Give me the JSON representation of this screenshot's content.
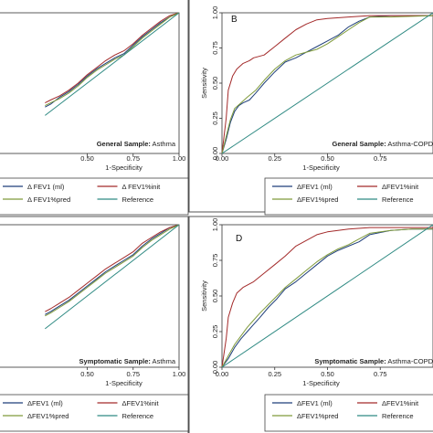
{
  "colors": {
    "fev1_ml": "#1f3f7a",
    "fev1_init": "#a32a2a",
    "fev1_pred": "#7f9a3a",
    "reference": "#2f8a83",
    "frame": "#555555"
  },
  "chart_data": [
    {
      "id": "A",
      "type": "line",
      "panel_label": "",
      "annotation_bold": "General Sample:",
      "annotation_rest": " Asthma",
      "xlabel": "1-Specificity",
      "ylabel": "",
      "xlim": [
        0,
        1
      ],
      "ylim": [
        0,
        1
      ],
      "x_ticks": [
        "0.50",
        "0.75",
        "1.00"
      ],
      "x_tick_values": [
        0.5,
        0.75,
        1.0
      ],
      "y_ticks": [],
      "y_tick_values": [],
      "legend": {
        "items": [
          "Δ FEV1 (ml)",
          "Δ FEV1%init",
          "Δ FEV1%pred",
          "Reference"
        ]
      },
      "series": [
        {
          "key": "fev1_ml",
          "points": [
            [
              0.27,
              0.33
            ],
            [
              0.3,
              0.35
            ],
            [
              0.35,
              0.4
            ],
            [
              0.4,
              0.44
            ],
            [
              0.45,
              0.49
            ],
            [
              0.5,
              0.55
            ],
            [
              0.55,
              0.6
            ],
            [
              0.6,
              0.64
            ],
            [
              0.65,
              0.68
            ],
            [
              0.7,
              0.71
            ],
            [
              0.75,
              0.77
            ],
            [
              0.8,
              0.83
            ],
            [
              0.85,
              0.88
            ],
            [
              0.9,
              0.93
            ],
            [
              0.95,
              0.97
            ],
            [
              1,
              1
            ]
          ]
        },
        {
          "key": "fev1_init",
          "points": [
            [
              0.27,
              0.36
            ],
            [
              0.3,
              0.38
            ],
            [
              0.35,
              0.41
            ],
            [
              0.4,
              0.45
            ],
            [
              0.45,
              0.5
            ],
            [
              0.5,
              0.56
            ],
            [
              0.55,
              0.61
            ],
            [
              0.6,
              0.66
            ],
            [
              0.65,
              0.7
            ],
            [
              0.7,
              0.73
            ],
            [
              0.75,
              0.78
            ],
            [
              0.8,
              0.84
            ],
            [
              0.85,
              0.89
            ],
            [
              0.9,
              0.94
            ],
            [
              0.95,
              0.98
            ],
            [
              1,
              1
            ]
          ]
        },
        {
          "key": "fev1_pred",
          "points": [
            [
              0.27,
              0.34
            ],
            [
              0.3,
              0.36
            ],
            [
              0.35,
              0.39
            ],
            [
              0.4,
              0.43
            ],
            [
              0.45,
              0.48
            ],
            [
              0.5,
              0.54
            ],
            [
              0.55,
              0.59
            ],
            [
              0.6,
              0.63
            ],
            [
              0.65,
              0.67
            ],
            [
              0.7,
              0.7
            ],
            [
              0.75,
              0.76
            ],
            [
              0.8,
              0.82
            ],
            [
              0.85,
              0.87
            ],
            [
              0.9,
              0.92
            ],
            [
              0.95,
              0.97
            ],
            [
              1,
              1
            ]
          ]
        },
        {
          "key": "reference",
          "points": [
            [
              0.27,
              0.27
            ],
            [
              1,
              1
            ]
          ]
        }
      ]
    },
    {
      "id": "B",
      "type": "line",
      "panel_label": "B",
      "annotation_bold": "General Sample:",
      "annotation_rest": " Asthma-COPD",
      "xlabel": "1-Specificity",
      "ylabel": "Sensitivity",
      "xlim": [
        0,
        1
      ],
      "ylim": [
        0,
        1
      ],
      "x_ticks": [
        "0.00",
        "0.25",
        "0.50",
        "0.75"
      ],
      "x_tick_values": [
        0,
        0.25,
        0.5,
        0.75
      ],
      "y_ticks": [
        "0.00",
        "0.25",
        "0.50",
        "0.75",
        "1.00"
      ],
      "y_tick_values": [
        0,
        0.25,
        0.5,
        0.75,
        1.0
      ],
      "legend": {
        "items": [
          "ΔFEV1 (ml)",
          "ΔFEV1%init",
          "ΔFEV1%pred",
          "Reference"
        ]
      },
      "series": [
        {
          "key": "fev1_ml",
          "points": [
            [
              0,
              0
            ],
            [
              0.02,
              0.1
            ],
            [
              0.04,
              0.22
            ],
            [
              0.06,
              0.3
            ],
            [
              0.08,
              0.34
            ],
            [
              0.1,
              0.36
            ],
            [
              0.13,
              0.38
            ],
            [
              0.16,
              0.43
            ],
            [
              0.2,
              0.5
            ],
            [
              0.25,
              0.58
            ],
            [
              0.3,
              0.65
            ],
            [
              0.35,
              0.68
            ],
            [
              0.4,
              0.72
            ],
            [
              0.45,
              0.76
            ],
            [
              0.5,
              0.8
            ],
            [
              0.55,
              0.84
            ],
            [
              0.6,
              0.9
            ],
            [
              0.65,
              0.94
            ],
            [
              0.7,
              0.97
            ],
            [
              0.8,
              0.98
            ],
            [
              0.9,
              0.98
            ],
            [
              1,
              0.98
            ]
          ]
        },
        {
          "key": "fev1_init",
          "points": [
            [
              0,
              0
            ],
            [
              0.02,
              0.25
            ],
            [
              0.03,
              0.45
            ],
            [
              0.05,
              0.55
            ],
            [
              0.07,
              0.6
            ],
            [
              0.1,
              0.64
            ],
            [
              0.13,
              0.66
            ],
            [
              0.15,
              0.68
            ],
            [
              0.2,
              0.7
            ],
            [
              0.25,
              0.76
            ],
            [
              0.3,
              0.82
            ],
            [
              0.35,
              0.88
            ],
            [
              0.4,
              0.92
            ],
            [
              0.45,
              0.95
            ],
            [
              0.5,
              0.96
            ],
            [
              0.6,
              0.97
            ],
            [
              0.7,
              0.98
            ],
            [
              0.8,
              0.98
            ],
            [
              1,
              0.98
            ]
          ]
        },
        {
          "key": "fev1_pred",
          "points": [
            [
              0,
              0
            ],
            [
              0.02,
              0.12
            ],
            [
              0.04,
              0.24
            ],
            [
              0.06,
              0.32
            ],
            [
              0.09,
              0.36
            ],
            [
              0.12,
              0.4
            ],
            [
              0.16,
              0.45
            ],
            [
              0.2,
              0.52
            ],
            [
              0.25,
              0.6
            ],
            [
              0.3,
              0.66
            ],
            [
              0.35,
              0.7
            ],
            [
              0.4,
              0.72
            ],
            [
              0.45,
              0.74
            ],
            [
              0.5,
              0.78
            ],
            [
              0.55,
              0.83
            ],
            [
              0.6,
              0.88
            ],
            [
              0.65,
              0.93
            ],
            [
              0.7,
              0.97
            ],
            [
              0.8,
              0.97
            ],
            [
              1,
              0.98
            ]
          ]
        },
        {
          "key": "reference",
          "points": [
            [
              0,
              0
            ],
            [
              1,
              1
            ]
          ]
        }
      ]
    },
    {
      "id": "C",
      "type": "line",
      "panel_label": "",
      "annotation_bold": "Symptomatic Sample:",
      "annotation_rest": " Asthma",
      "xlabel": "1-Specificity",
      "ylabel": "",
      "xlim": [
        0,
        1
      ],
      "ylim": [
        0,
        1
      ],
      "x_ticks": [
        "0.50",
        "0.75",
        "1.00"
      ],
      "x_tick_values": [
        0.5,
        0.75,
        1.0
      ],
      "y_ticks": [],
      "y_tick_values": [],
      "legend": {
        "items": [
          "ΔFEV1 (ml)",
          "ΔFEV1%init",
          "ΔFEV1%pred",
          "Reference"
        ]
      },
      "series": [
        {
          "key": "fev1_ml",
          "points": [
            [
              0.27,
              0.37
            ],
            [
              0.3,
              0.39
            ],
            [
              0.35,
              0.43
            ],
            [
              0.4,
              0.47
            ],
            [
              0.45,
              0.52
            ],
            [
              0.5,
              0.57
            ],
            [
              0.55,
              0.62
            ],
            [
              0.6,
              0.67
            ],
            [
              0.65,
              0.71
            ],
            [
              0.7,
              0.75
            ],
            [
              0.75,
              0.79
            ],
            [
              0.8,
              0.85
            ],
            [
              0.85,
              0.9
            ],
            [
              0.9,
              0.94
            ],
            [
              0.95,
              0.98
            ],
            [
              1,
              1
            ]
          ]
        },
        {
          "key": "fev1_init",
          "points": [
            [
              0.27,
              0.39
            ],
            [
              0.3,
              0.41
            ],
            [
              0.35,
              0.45
            ],
            [
              0.4,
              0.49
            ],
            [
              0.45,
              0.54
            ],
            [
              0.5,
              0.59
            ],
            [
              0.55,
              0.64
            ],
            [
              0.6,
              0.69
            ],
            [
              0.65,
              0.73
            ],
            [
              0.7,
              0.77
            ],
            [
              0.75,
              0.81
            ],
            [
              0.8,
              0.87
            ],
            [
              0.85,
              0.91
            ],
            [
              0.9,
              0.95
            ],
            [
              0.95,
              0.98
            ],
            [
              1,
              1
            ]
          ]
        },
        {
          "key": "fev1_pred",
          "points": [
            [
              0.27,
              0.36
            ],
            [
              0.3,
              0.38
            ],
            [
              0.35,
              0.42
            ],
            [
              0.4,
              0.46
            ],
            [
              0.45,
              0.51
            ],
            [
              0.5,
              0.56
            ],
            [
              0.55,
              0.61
            ],
            [
              0.6,
              0.66
            ],
            [
              0.65,
              0.7
            ],
            [
              0.7,
              0.74
            ],
            [
              0.75,
              0.78
            ],
            [
              0.8,
              0.84
            ],
            [
              0.85,
              0.89
            ],
            [
              0.9,
              0.93
            ],
            [
              0.95,
              0.97
            ],
            [
              1,
              1
            ]
          ]
        },
        {
          "key": "reference",
          "points": [
            [
              0.27,
              0.27
            ],
            [
              1,
              1
            ]
          ]
        }
      ]
    },
    {
      "id": "D",
      "type": "line",
      "panel_label": "D",
      "annotation_bold": "Symptomatic Sample:",
      "annotation_rest": " Asthma-COPD",
      "xlabel": "1-Specificity",
      "ylabel": "Sensitivity",
      "xlim": [
        0,
        1
      ],
      "ylim": [
        0,
        1
      ],
      "x_ticks": [
        "0.00",
        "0.25",
        "0.50",
        "0.75"
      ],
      "x_tick_values": [
        0,
        0.25,
        0.5,
        0.75
      ],
      "y_ticks": [
        "0.00",
        "0.25",
        "0.50",
        "0.75",
        "1.00"
      ],
      "y_tick_values": [
        0,
        0.25,
        0.5,
        0.75,
        1.0
      ],
      "legend": {
        "items": [
          "ΔFEV1 (ml)",
          "ΔFEV1%init",
          "ΔFEV1%pred",
          "Reference"
        ]
      },
      "series": [
        {
          "key": "fev1_ml",
          "points": [
            [
              0,
              0
            ],
            [
              0.03,
              0.06
            ],
            [
              0.06,
              0.14
            ],
            [
              0.09,
              0.2
            ],
            [
              0.12,
              0.25
            ],
            [
              0.15,
              0.3
            ],
            [
              0.18,
              0.35
            ],
            [
              0.22,
              0.42
            ],
            [
              0.26,
              0.48
            ],
            [
              0.3,
              0.55
            ],
            [
              0.35,
              0.6
            ],
            [
              0.4,
              0.66
            ],
            [
              0.45,
              0.72
            ],
            [
              0.5,
              0.78
            ],
            [
              0.55,
              0.82
            ],
            [
              0.6,
              0.85
            ],
            [
              0.65,
              0.88
            ],
            [
              0.7,
              0.93
            ],
            [
              0.8,
              0.96
            ],
            [
              0.9,
              0.97
            ],
            [
              1,
              0.97
            ]
          ]
        },
        {
          "key": "fev1_init",
          "points": [
            [
              0,
              0
            ],
            [
              0.02,
              0.2
            ],
            [
              0.03,
              0.35
            ],
            [
              0.05,
              0.45
            ],
            [
              0.07,
              0.52
            ],
            [
              0.1,
              0.56
            ],
            [
              0.15,
              0.6
            ],
            [
              0.2,
              0.66
            ],
            [
              0.25,
              0.72
            ],
            [
              0.3,
              0.78
            ],
            [
              0.35,
              0.85
            ],
            [
              0.4,
              0.89
            ],
            [
              0.45,
              0.93
            ],
            [
              0.5,
              0.95
            ],
            [
              0.6,
              0.97
            ],
            [
              0.7,
              0.98
            ],
            [
              0.8,
              0.98
            ],
            [
              1,
              0.98
            ]
          ]
        },
        {
          "key": "fev1_pred",
          "points": [
            [
              0,
              0
            ],
            [
              0.03,
              0.08
            ],
            [
              0.06,
              0.16
            ],
            [
              0.09,
              0.22
            ],
            [
              0.12,
              0.28
            ],
            [
              0.15,
              0.33
            ],
            [
              0.18,
              0.38
            ],
            [
              0.22,
              0.44
            ],
            [
              0.26,
              0.5
            ],
            [
              0.3,
              0.56
            ],
            [
              0.35,
              0.62
            ],
            [
              0.4,
              0.68
            ],
            [
              0.45,
              0.74
            ],
            [
              0.5,
              0.79
            ],
            [
              0.55,
              0.83
            ],
            [
              0.6,
              0.86
            ],
            [
              0.65,
              0.9
            ],
            [
              0.7,
              0.94
            ],
            [
              0.8,
              0.96
            ],
            [
              0.9,
              0.97
            ],
            [
              1,
              0.97
            ]
          ]
        },
        {
          "key": "reference",
          "points": [
            [
              0,
              0
            ],
            [
              1,
              1
            ]
          ]
        }
      ]
    }
  ]
}
